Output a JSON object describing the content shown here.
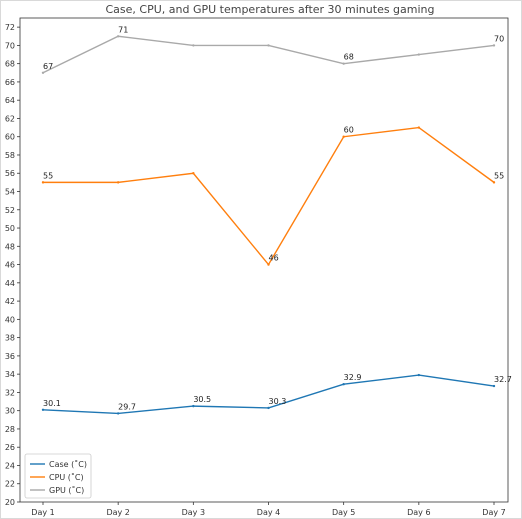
{
  "chart_data": {
    "type": "line",
    "title": "Case, CPU, and GPU temperatures after 30 minutes gaming",
    "xlabel": "",
    "ylabel": "",
    "categories": [
      "Day 1",
      "Day 2",
      "Day 3",
      "Day 4",
      "Day 5",
      "Day 6",
      "Day 7"
    ],
    "ylim": [
      20,
      73
    ],
    "yticks": [
      20,
      22,
      24,
      26,
      28,
      30,
      32,
      34,
      36,
      38,
      40,
      42,
      44,
      46,
      48,
      50,
      52,
      54,
      56,
      58,
      60,
      62,
      64,
      66,
      68,
      70,
      72
    ],
    "grid": false,
    "legend_position": "bottom-left",
    "series": [
      {
        "name": "Case (˚C)",
        "color": "#1f77b4",
        "values": [
          30.1,
          29.7,
          30.5,
          30.3,
          32.9,
          33.9,
          32.7
        ],
        "labels": [
          "30.1",
          "29.7",
          "30.5",
          "30.3",
          "32.9",
          "",
          "32.7"
        ]
      },
      {
        "name": "CPU (˚C)",
        "color": "#ff7f0e",
        "values": [
          55,
          55,
          56,
          46,
          60,
          61,
          55
        ],
        "labels": [
          "55",
          "",
          "",
          "46",
          "60",
          "",
          "55"
        ]
      },
      {
        "name": "GPU (˚C)",
        "color": "#a9a9a9",
        "values": [
          67,
          71,
          70,
          70,
          68,
          69,
          70
        ],
        "labels": [
          "67",
          "71",
          "",
          "",
          "68",
          "",
          "70"
        ]
      }
    ]
  }
}
